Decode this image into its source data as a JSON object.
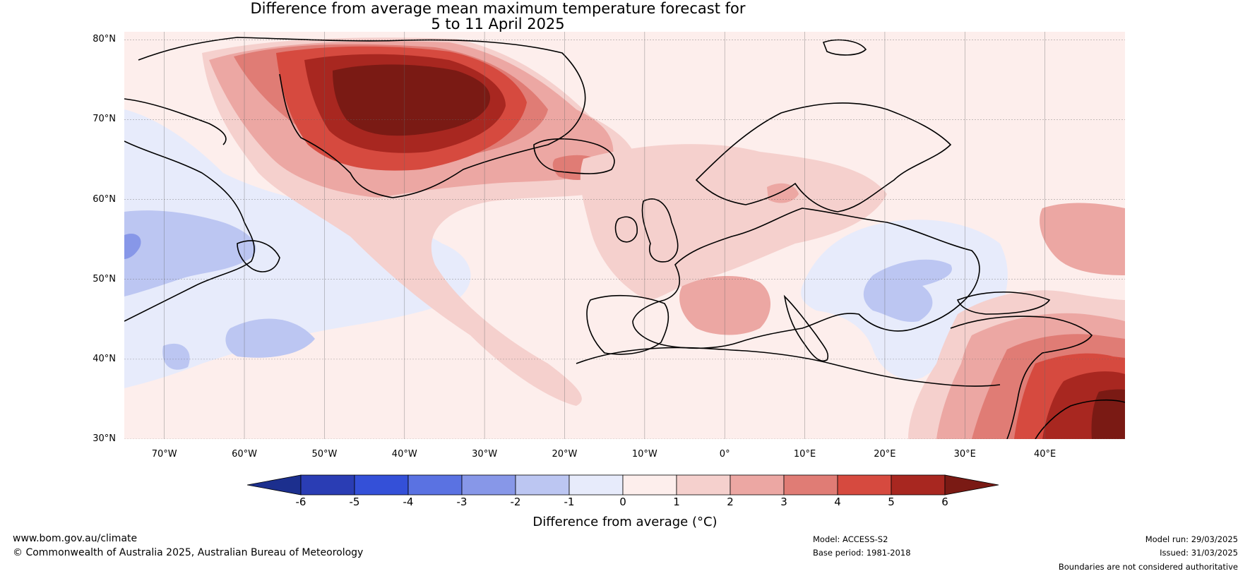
{
  "title": {
    "line1": "Difference from average mean maximum temperature forecast for",
    "line2": "5 to 11 April 2025"
  },
  "map": {
    "projection": "plate carree",
    "lon_range": [
      -75,
      50
    ],
    "lat_range": [
      30,
      81
    ],
    "gridlines": true,
    "lat_labels": [
      "80°N",
      "70°N",
      "60°N",
      "50°N",
      "40°N",
      "30°N"
    ],
    "lat_values": [
      80,
      70,
      60,
      50,
      40,
      30
    ],
    "lon_labels": [
      "70°W",
      "60°W",
      "50°W",
      "40°W",
      "30°W",
      "20°W",
      "10°W",
      "0°",
      "10°E",
      "20°E",
      "30°E",
      "40°E"
    ],
    "lon_values": [
      -70,
      -60,
      -50,
      -40,
      -30,
      -20,
      -10,
      0,
      10,
      20,
      30,
      40
    ]
  },
  "colorbar": {
    "label": "Difference from average (°C)",
    "ticks": [
      "-6",
      "-5",
      "-4",
      "-3",
      "-2",
      "-1",
      "0",
      "1",
      "2",
      "3",
      "4",
      "5",
      "6"
    ],
    "colors": [
      "#1c2f8e",
      "#2a3db4",
      "#3450d8",
      "#5a72e2",
      "#8797e8",
      "#bcc6f2",
      "#e7ebfb",
      "#fdeeec",
      "#f5d0cd",
      "#eca7a3",
      "#e07c75",
      "#d64a3f",
      "#a82720",
      "#7a1a14"
    ],
    "extend": "both"
  },
  "footer": {
    "website": "www.bom.gov.au/climate",
    "copyright": "© Commonwealth of Australia 2025, Australian Bureau of Meteorology",
    "model": "Model: ACCESS-S2",
    "base_period": "Base period: 1981-2018",
    "model_run": "Model run: 29/03/2025",
    "issued": "Issued: 31/03/2025",
    "disclaimer": "Boundaries are not considered authoritative"
  },
  "anomaly_regions": [
    {
      "name": "greenland",
      "value_range": [
        0,
        6
      ],
      "peak": 6
    },
    {
      "name": "iceland",
      "value_range": [
        2,
        4
      ]
    },
    {
      "name": "canada-labrador-newfoundland",
      "value_range": [
        -3,
        0
      ]
    },
    {
      "name": "western-north-atlantic",
      "value_range": [
        -2,
        -1
      ]
    },
    {
      "name": "central-europe",
      "value_range": [
        -2,
        0
      ]
    },
    {
      "name": "france",
      "value_range": [
        2,
        3
      ]
    },
    {
      "name": "middle-east",
      "value_range": [
        2,
        6
      ],
      "peak": 6
    }
  ]
}
